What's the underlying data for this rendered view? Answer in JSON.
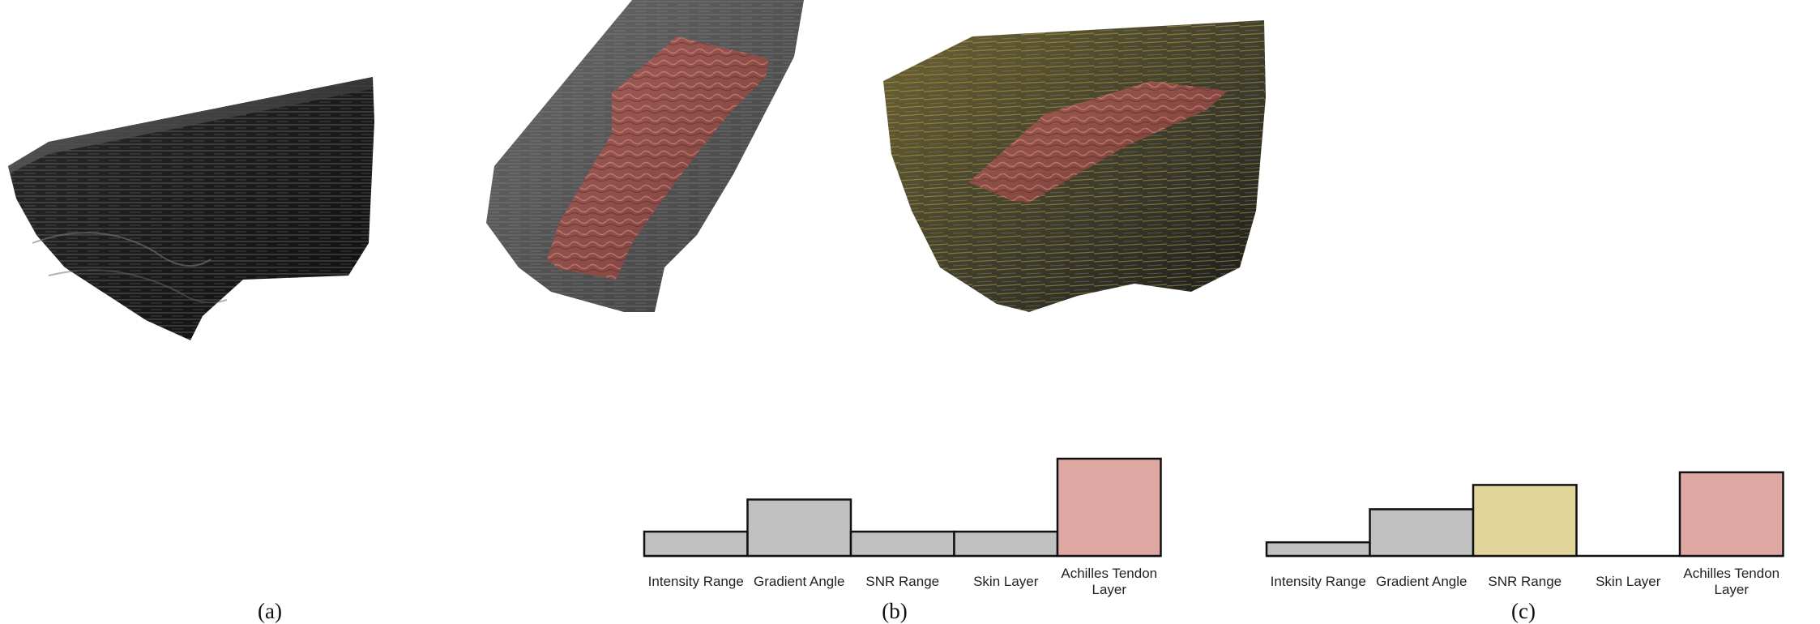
{
  "panels": [
    {
      "caption": "(a)"
    },
    {
      "caption": "(b)",
      "bars": [
        {
          "label": "Intensity Range",
          "level": 0.25,
          "color": "#c0c0c0"
        },
        {
          "label": "Gradient Angle",
          "level": 0.58,
          "color": "#c0c0c0"
        },
        {
          "label": "SNR Range",
          "level": 0.25,
          "color": "#c0c0c0"
        },
        {
          "label": "Skin Layer",
          "level": 0.25,
          "color": "#c0c0c0"
        },
        {
          "label": "Achilles Tendon Layer",
          "label_lines": [
            "Achilles Tendon",
            "Layer"
          ],
          "level": 1.0,
          "color": "#e0a8a2"
        }
      ]
    },
    {
      "caption": "(c)",
      "bars": [
        {
          "label": "Intensity Range",
          "level": 0.14,
          "color": "#c0c0c0"
        },
        {
          "label": "Gradient Angle",
          "level": 0.48,
          "color": "#c0c0c0"
        },
        {
          "label": "SNR Range",
          "level": 0.73,
          "color": "#e2d59c"
        },
        {
          "label": "Skin Layer",
          "level": 0.0,
          "color": "#c0c0c0"
        },
        {
          "label": "Achilles Tendon Layer",
          "label_lines": [
            "Achilles Tendon",
            "Layer"
          ],
          "level": 0.86,
          "color": "#e0a8a2"
        }
      ]
    }
  ]
}
